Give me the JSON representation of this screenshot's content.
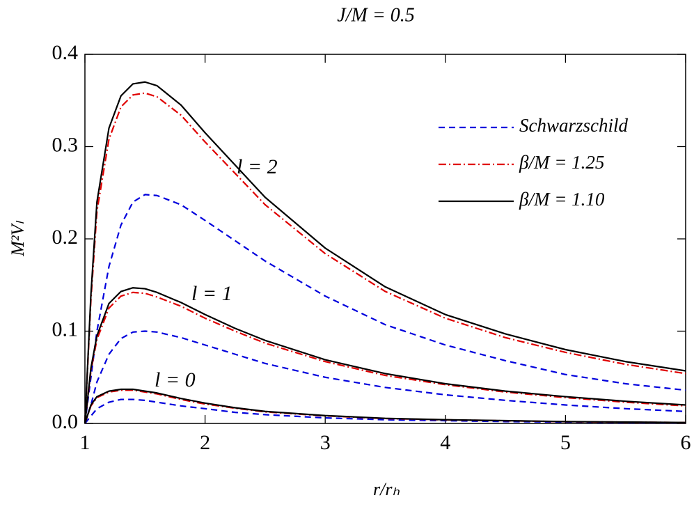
{
  "chart_data": {
    "type": "line",
    "title": "J/M = 0.5",
    "xlabel": "r/rₕ",
    "ylabel": "M²Vₗ",
    "x": [
      1,
      1.05,
      1.1,
      1.2,
      1.3,
      1.4,
      1.5,
      1.6,
      1.8,
      2,
      2.25,
      2.5,
      3,
      3.5,
      4,
      4.5,
      5,
      5.5,
      6
    ],
    "xlim": [
      1,
      6
    ],
    "ylim": [
      0,
      0.4
    ],
    "xticks": [
      1,
      2,
      3,
      4,
      5,
      6
    ],
    "yticks": [
      {
        "value": 0,
        "label": "0.0"
      },
      0.1,
      0.2,
      0.3,
      0.4
    ],
    "legend": "upper right",
    "annotations": [
      "l = 0",
      "l = 1",
      "l = 2"
    ],
    "series": [
      {
        "name": "Schwarzschild",
        "color": "#0000dd",
        "dash": "9,6",
        "curves": [
          [
            0,
            0.008,
            0.016,
            0.023,
            0.026,
            0.026,
            0.025,
            0.023,
            0.019,
            0.016,
            0.012,
            0.0095,
            0.006,
            0.004,
            0.003,
            0.002,
            0.0015,
            0.001,
            0.0008
          ],
          [
            0,
            0.02,
            0.045,
            0.075,
            0.092,
            0.099,
            0.1,
            0.099,
            0.093,
            0.085,
            0.075,
            0.065,
            0.05,
            0.039,
            0.031,
            0.025,
            0.02,
            0.016,
            0.013
          ],
          [
            0,
            0.05,
            0.1,
            0.17,
            0.215,
            0.24,
            0.248,
            0.247,
            0.237,
            0.22,
            0.198,
            0.176,
            0.138,
            0.107,
            0.085,
            0.068,
            0.053,
            0.043,
            0.036
          ]
        ]
      },
      {
        "name": "β/M = 1.25",
        "color": "#e00000",
        "dash": "11,4,2,4",
        "curves": [
          [
            0,
            0.019,
            0.028,
            0.034,
            0.036,
            0.036,
            0.034,
            0.032,
            0.026,
            0.021,
            0.0165,
            0.0125,
            0.0082,
            0.0053,
            0.0039,
            0.0029,
            0.0019,
            0.0014,
            0.001
          ],
          [
            0,
            0.057,
            0.091,
            0.125,
            0.138,
            0.142,
            0.141,
            0.137,
            0.127,
            0.114,
            0.1,
            0.087,
            0.067,
            0.052,
            0.042,
            0.034,
            0.028,
            0.023,
            0.019
          ],
          [
            0,
            0.134,
            0.23,
            0.308,
            0.343,
            0.356,
            0.358,
            0.354,
            0.334,
            0.305,
            0.271,
            0.237,
            0.184,
            0.143,
            0.114,
            0.093,
            0.077,
            0.064,
            0.054
          ]
        ]
      },
      {
        "name": "β/M = 1.10",
        "color": "#000000",
        "dash": "",
        "curves": [
          [
            0,
            0.02,
            0.029,
            0.035,
            0.037,
            0.037,
            0.035,
            0.033,
            0.027,
            0.022,
            0.017,
            0.013,
            0.0085,
            0.0055,
            0.004,
            0.003,
            0.002,
            0.0015,
            0.001
          ],
          [
            0,
            0.06,
            0.095,
            0.13,
            0.143,
            0.147,
            0.146,
            0.142,
            0.131,
            0.118,
            0.103,
            0.09,
            0.069,
            0.054,
            0.043,
            0.035,
            0.029,
            0.024,
            0.02
          ],
          [
            0,
            0.14,
            0.24,
            0.32,
            0.355,
            0.368,
            0.37,
            0.366,
            0.345,
            0.315,
            0.28,
            0.245,
            0.19,
            0.148,
            0.118,
            0.097,
            0.08,
            0.067,
            0.057
          ]
        ]
      }
    ]
  }
}
